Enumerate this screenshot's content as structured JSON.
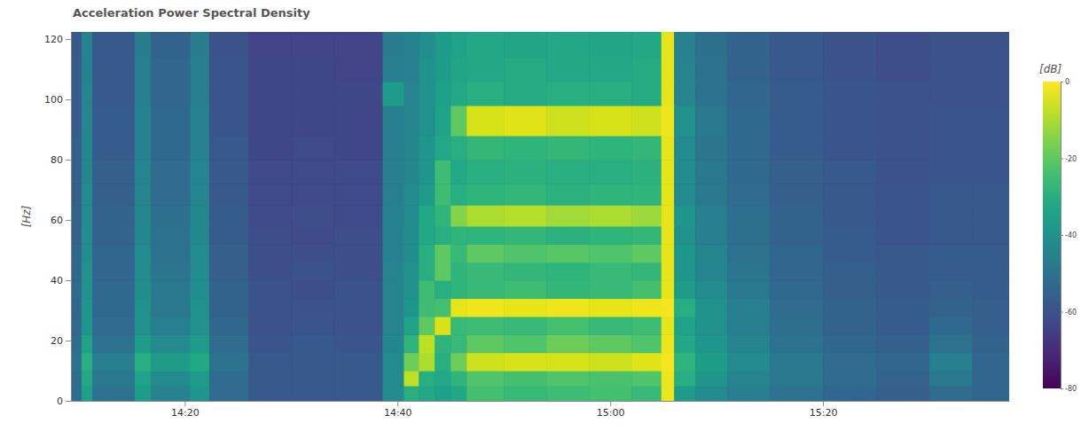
{
  "chart_data": {
    "type": "heatmap",
    "title": "Acceleration Power Spectral Density",
    "y_label": "[Hz]",
    "color": "viridis",
    "xlim": [
      849.3,
      937.5
    ],
    "ylim": [
      0,
      122.4
    ],
    "xticks": [
      {
        "value": 860,
        "label": "14:20"
      },
      {
        "value": 880,
        "label": "14:40"
      },
      {
        "value": 900,
        "label": "15:00"
      },
      {
        "value": 920,
        "label": "15:20"
      }
    ],
    "yticks": [
      0,
      20,
      40,
      60,
      80,
      100,
      120
    ],
    "x_edges": [
      849.3,
      850.3,
      851.3,
      855.3,
      856.8,
      860.5,
      862.3,
      866,
      870,
      874,
      878.6,
      880.6,
      882,
      883.5,
      885,
      886.5,
      890,
      894,
      898,
      902,
      904.8,
      906,
      908,
      911,
      915,
      920,
      925,
      930,
      934,
      937.5
    ],
    "y_edges": [
      0,
      5,
      10,
      16,
      22,
      28,
      34,
      40,
      46,
      52,
      58,
      65,
      72,
      80,
      88,
      98,
      106,
      114,
      122.4
    ],
    "z": [
      [
        -52,
        -35,
        -50,
        -36,
        -45,
        -38,
        -52,
        -58,
        -58,
        -58,
        -42,
        -30,
        -32,
        -35,
        -32,
        -24,
        -26,
        -25,
        -24,
        -26,
        -2,
        -36,
        -42,
        -46,
        -50,
        -54,
        -56,
        -52,
        -54
      ],
      [
        -52,
        -32,
        -48,
        -34,
        -42,
        -36,
        -52,
        -58,
        -58,
        -58,
        -42,
        -8,
        -30,
        -32,
        -28,
        -22,
        -24,
        -22,
        -23,
        -22,
        -2,
        -30,
        -38,
        -44,
        -48,
        -52,
        -55,
        -48,
        -54
      ],
      [
        -50,
        -30,
        -46,
        -30,
        -36,
        -32,
        -50,
        -58,
        -58,
        -58,
        -42,
        -18,
        -10,
        -30,
        -18,
        -6,
        -5,
        -5,
        -6,
        -4,
        -1,
        -28,
        -36,
        -42,
        -48,
        -52,
        -54,
        -46,
        -54
      ],
      [
        -52,
        -34,
        -50,
        -36,
        -42,
        -36,
        -52,
        -59,
        -58,
        -59,
        -43,
        -28,
        -8,
        -28,
        -26,
        -20,
        -22,
        -18,
        -20,
        -22,
        -2,
        -32,
        -38,
        -44,
        -50,
        -54,
        -56,
        -50,
        -55
      ],
      [
        -53,
        -38,
        -52,
        -40,
        -46,
        -40,
        -54,
        -60,
        -59,
        -60,
        -44,
        -34,
        -20,
        -5,
        -26,
        -25,
        -26,
        -24,
        -26,
        -25,
        -3,
        -34,
        -40,
        -46,
        -51,
        -55,
        -57,
        -53,
        -56
      ],
      [
        -54,
        -38,
        -53,
        -40,
        -48,
        -40,
        -55,
        -60,
        -60,
        -60,
        -44,
        -38,
        -25,
        -24,
        -3,
        -2,
        -3,
        -2,
        -3,
        -2,
        -1,
        -30,
        -40,
        -46,
        -52,
        -55,
        -57,
        -55,
        -56
      ],
      [
        -53,
        -40,
        -53,
        -41,
        -48,
        -41,
        -55,
        -60,
        -61,
        -60,
        -44,
        -40,
        -25,
        -30,
        -28,
        -26,
        -25,
        -27,
        -26,
        -24,
        -3,
        -36,
        -42,
        -48,
        -53,
        -56,
        -58,
        -56,
        -57
      ],
      [
        -54,
        -40,
        -54,
        -42,
        -49,
        -42,
        -56,
        -61,
        -60,
        -61,
        -44,
        -40,
        -30,
        -20,
        -28,
        -26,
        -27,
        -28,
        -26,
        -27,
        -3,
        -38,
        -44,
        -49,
        -54,
        -56,
        -58,
        -57,
        -57
      ],
      [
        -54,
        -41,
        -54,
        -42,
        -50,
        -42,
        -56,
        -61,
        -61,
        -61,
        -45,
        -41,
        -30,
        -20,
        -26,
        -20,
        -22,
        -21,
        -22,
        -20,
        -3,
        -38,
        -44,
        -50,
        -54,
        -57,
        -58,
        -57,
        -57
      ],
      [
        -55,
        -41,
        -55,
        -43,
        -50,
        -43,
        -57,
        -61,
        -62,
        -61,
        -45,
        -41,
        -32,
        -30,
        -28,
        -28,
        -27,
        -29,
        -28,
        -27,
        -3,
        -40,
        -46,
        -51,
        -55,
        -57,
        -59,
        -58,
        -58
      ],
      [
        -55,
        -42,
        -55,
        -43,
        -51,
        -43,
        -57,
        -62,
        -61,
        -62,
        -45,
        -42,
        -32,
        -28,
        -15,
        -10,
        -9,
        -11,
        -10,
        -12,
        -3,
        -38,
        -46,
        -51,
        -55,
        -58,
        -59,
        -58,
        -58
      ],
      [
        -56,
        -42,
        -56,
        -44,
        -52,
        -44,
        -58,
        -62,
        -62,
        -62,
        -46,
        -42,
        -36,
        -25,
        -30,
        -28,
        -27,
        -29,
        -28,
        -28,
        -3,
        -42,
        -48,
        -52,
        -56,
        -58,
        -59,
        -58,
        -58
      ],
      [
        -56,
        -43,
        -56,
        -44,
        -52,
        -44,
        -58,
        -62,
        -62,
        -62,
        -46,
        -43,
        -38,
        -25,
        -32,
        -30,
        -29,
        -30,
        -30,
        -29,
        -3,
        -42,
        -48,
        -53,
        -56,
        -58,
        -60,
        -59,
        -59
      ],
      [
        -56,
        -43,
        -57,
        -45,
        -53,
        -45,
        -58,
        -63,
        -62,
        -63,
        -46,
        -43,
        -38,
        -32,
        -30,
        -27,
        -28,
        -27,
        -28,
        -27,
        -3,
        -42,
        -49,
        -53,
        -57,
        -59,
        -60,
        -59,
        -59
      ],
      [
        -57,
        -44,
        -57,
        -45,
        -53,
        -45,
        -59,
        -63,
        -63,
        -63,
        -46,
        -44,
        -40,
        -34,
        -20,
        -5,
        -4,
        -6,
        -5,
        -6,
        -2,
        -40,
        -48,
        -53,
        -57,
        -59,
        -60,
        -59,
        -59
      ],
      [
        -57,
        -44,
        -58,
        -46,
        -54,
        -46,
        -59,
        -63,
        -63,
        -63,
        -36,
        -44,
        -40,
        -35,
        -32,
        -30,
        -31,
        -30,
        -30,
        -31,
        -3,
        -44,
        -50,
        -54,
        -57,
        -59,
        -60,
        -60,
        -60
      ],
      [
        -57,
        -45,
        -58,
        -46,
        -54,
        -46,
        -59,
        -63,
        -63,
        -64,
        -46,
        -45,
        -40,
        -36,
        -33,
        -32,
        -31,
        -32,
        -32,
        -31,
        -3,
        -44,
        -50,
        -55,
        -58,
        -60,
        -61,
        -60,
        -60
      ],
      [
        -58,
        -45,
        -58,
        -47,
        -55,
        -47,
        -60,
        -64,
        -64,
        -64,
        -47,
        -45,
        -41,
        -36,
        -34,
        -32,
        -33,
        -32,
        -33,
        -32,
        -3,
        -45,
        -51,
        -55,
        -58,
        -60,
        -61,
        -60,
        -60
      ]
    ],
    "colorbar": {
      "label": "[dB]",
      "range": [
        -80,
        0
      ],
      "ticks": [
        0,
        -20,
        -40,
        -60,
        -80
      ]
    }
  }
}
